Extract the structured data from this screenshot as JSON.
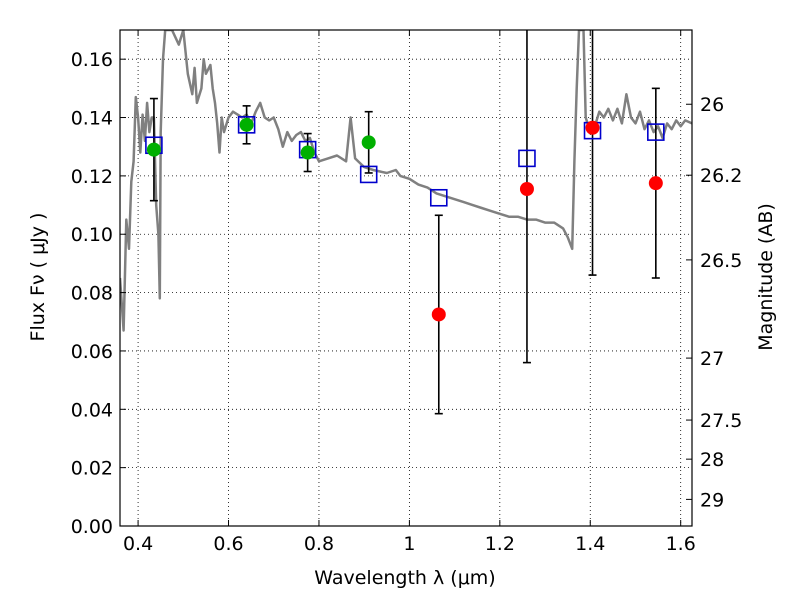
{
  "chart_data": {
    "type": "scatter",
    "xlabel": "Wavelength  λ (μm)",
    "ylabel": "Flux  Fν  ( μJy )",
    "y2label": "Magnitude (AB)",
    "xlim": [
      0.36,
      1.625
    ],
    "ylim": [
      0.0,
      0.17
    ],
    "grid": true,
    "x_ticks": [
      0.4,
      0.6,
      0.8,
      1.0,
      1.2,
      1.4,
      1.6
    ],
    "x_tick_labels": [
      "0.4",
      "0.6",
      "0.8",
      "1",
      "1.2",
      "1.4",
      "1.6"
    ],
    "y_ticks": [
      0.0,
      0.02,
      0.04,
      0.06,
      0.08,
      0.1,
      0.12,
      0.14,
      0.16
    ],
    "y_tick_labels": [
      "0.00",
      "0.02",
      "0.04",
      "0.06",
      "0.08",
      "0.10",
      "0.12",
      "0.14",
      "0.16"
    ],
    "y2_ticks": [
      26,
      26.2,
      26.5,
      27,
      27.5,
      28,
      29
    ],
    "y2_tick_labels": [
      "26",
      "26.2",
      "26.5",
      "27",
      "27.5",
      "28",
      "29"
    ],
    "series": [
      {
        "marker": "circle",
        "color": "#00b000",
        "points": [
          {
            "x": 0.435,
            "y": 0.129,
            "yerr": 0.0175
          },
          {
            "x": 0.64,
            "y": 0.1375,
            "yerr": 0.0065
          },
          {
            "x": 0.775,
            "y": 0.128,
            "yerr": 0.0065
          },
          {
            "x": 0.91,
            "y": 0.1315,
            "yerr": 0.0105
          }
        ]
      },
      {
        "marker": "circle",
        "color": "#ff0000",
        "points": [
          {
            "x": 1.065,
            "y": 0.0725,
            "yerr": 0.034
          },
          {
            "x": 1.26,
            "y": 0.1155,
            "yerr": 0.0595
          },
          {
            "x": 1.405,
            "y": 0.1365,
            "yerr": 0.0505
          },
          {
            "x": 1.545,
            "y": 0.1175,
            "yerr": 0.0325
          }
        ]
      },
      {
        "marker": "square-open",
        "color": "#0000cc",
        "points": [
          {
            "x": 0.435,
            "y": 0.1305
          },
          {
            "x": 0.64,
            "y": 0.1375
          },
          {
            "x": 0.775,
            "y": 0.129
          },
          {
            "x": 0.91,
            "y": 0.1205
          },
          {
            "x": 1.065,
            "y": 0.1125
          },
          {
            "x": 1.26,
            "y": 0.126
          },
          {
            "x": 1.405,
            "y": 0.1355
          },
          {
            "x": 1.545,
            "y": 0.135
          }
        ]
      },
      {
        "marker": "line",
        "color": "#808080",
        "points": [
          {
            "x": 0.36,
            "y": 0.085
          },
          {
            "x": 0.368,
            "y": 0.067
          },
          {
            "x": 0.374,
            "y": 0.105
          },
          {
            "x": 0.38,
            "y": 0.095
          },
          {
            "x": 0.385,
            "y": 0.118
          },
          {
            "x": 0.39,
            "y": 0.125
          },
          {
            "x": 0.395,
            "y": 0.147
          },
          {
            "x": 0.4,
            "y": 0.14
          },
          {
            "x": 0.405,
            "y": 0.128
          },
          {
            "x": 0.41,
            "y": 0.141
          },
          {
            "x": 0.415,
            "y": 0.132
          },
          {
            "x": 0.42,
            "y": 0.145
          },
          {
            "x": 0.425,
            "y": 0.135
          },
          {
            "x": 0.43,
            "y": 0.14
          },
          {
            "x": 0.435,
            "y": 0.14
          },
          {
            "x": 0.44,
            "y": 0.11
          },
          {
            "x": 0.445,
            "y": 0.1
          },
          {
            "x": 0.448,
            "y": 0.078
          },
          {
            "x": 0.45,
            "y": 0.135
          },
          {
            "x": 0.455,
            "y": 0.16
          },
          {
            "x": 0.46,
            "y": 0.17
          },
          {
            "x": 0.475,
            "y": 0.17
          },
          {
            "x": 0.49,
            "y": 0.165
          },
          {
            "x": 0.5,
            "y": 0.17
          },
          {
            "x": 0.51,
            "y": 0.155
          },
          {
            "x": 0.52,
            "y": 0.148
          },
          {
            "x": 0.525,
            "y": 0.157
          },
          {
            "x": 0.53,
            "y": 0.145
          },
          {
            "x": 0.54,
            "y": 0.15
          },
          {
            "x": 0.545,
            "y": 0.16
          },
          {
            "x": 0.55,
            "y": 0.155
          },
          {
            "x": 0.56,
            "y": 0.158
          },
          {
            "x": 0.565,
            "y": 0.15
          },
          {
            "x": 0.57,
            "y": 0.145
          },
          {
            "x": 0.575,
            "y": 0.138
          },
          {
            "x": 0.58,
            "y": 0.128
          },
          {
            "x": 0.585,
            "y": 0.14
          },
          {
            "x": 0.59,
            "y": 0.135
          },
          {
            "x": 0.6,
            "y": 0.14
          },
          {
            "x": 0.61,
            "y": 0.142
          },
          {
            "x": 0.62,
            "y": 0.141
          },
          {
            "x": 0.63,
            "y": 0.14
          },
          {
            "x": 0.64,
            "y": 0.141
          },
          {
            "x": 0.65,
            "y": 0.138
          },
          {
            "x": 0.66,
            "y": 0.142
          },
          {
            "x": 0.67,
            "y": 0.145
          },
          {
            "x": 0.68,
            "y": 0.14
          },
          {
            "x": 0.69,
            "y": 0.139
          },
          {
            "x": 0.7,
            "y": 0.14
          },
          {
            "x": 0.71,
            "y": 0.136
          },
          {
            "x": 0.72,
            "y": 0.13
          },
          {
            "x": 0.73,
            "y": 0.135
          },
          {
            "x": 0.74,
            "y": 0.132
          },
          {
            "x": 0.75,
            "y": 0.134
          },
          {
            "x": 0.76,
            "y": 0.135
          },
          {
            "x": 0.77,
            "y": 0.132
          },
          {
            "x": 0.78,
            "y": 0.133
          },
          {
            "x": 0.79,
            "y": 0.128
          },
          {
            "x": 0.8,
            "y": 0.125
          },
          {
            "x": 0.82,
            "y": 0.126
          },
          {
            "x": 0.84,
            "y": 0.127
          },
          {
            "x": 0.86,
            "y": 0.125
          },
          {
            "x": 0.87,
            "y": 0.14
          },
          {
            "x": 0.88,
            "y": 0.126
          },
          {
            "x": 0.9,
            "y": 0.123
          },
          {
            "x": 0.92,
            "y": 0.122
          },
          {
            "x": 0.95,
            "y": 0.121
          },
          {
            "x": 0.97,
            "y": 0.122
          },
          {
            "x": 0.98,
            "y": 0.12
          },
          {
            "x": 1.0,
            "y": 0.119
          },
          {
            "x": 1.02,
            "y": 0.117
          },
          {
            "x": 1.04,
            "y": 0.116
          },
          {
            "x": 1.06,
            "y": 0.114
          },
          {
            "x": 1.08,
            "y": 0.113
          },
          {
            "x": 1.1,
            "y": 0.112
          },
          {
            "x": 1.12,
            "y": 0.111
          },
          {
            "x": 1.14,
            "y": 0.11
          },
          {
            "x": 1.16,
            "y": 0.109
          },
          {
            "x": 1.18,
            "y": 0.108
          },
          {
            "x": 1.2,
            "y": 0.107
          },
          {
            "x": 1.22,
            "y": 0.106
          },
          {
            "x": 1.24,
            "y": 0.106
          },
          {
            "x": 1.26,
            "y": 0.105
          },
          {
            "x": 1.28,
            "y": 0.105
          },
          {
            "x": 1.3,
            "y": 0.104
          },
          {
            "x": 1.32,
            "y": 0.104
          },
          {
            "x": 1.34,
            "y": 0.102
          },
          {
            "x": 1.35,
            "y": 0.099
          },
          {
            "x": 1.36,
            "y": 0.095
          },
          {
            "x": 1.365,
            "y": 0.125
          },
          {
            "x": 1.37,
            "y": 0.15
          },
          {
            "x": 1.375,
            "y": 0.17
          },
          {
            "x": 1.385,
            "y": 0.17
          },
          {
            "x": 1.39,
            "y": 0.14
          },
          {
            "x": 1.4,
            "y": 0.135
          },
          {
            "x": 1.41,
            "y": 0.137
          },
          {
            "x": 1.42,
            "y": 0.142
          },
          {
            "x": 1.43,
            "y": 0.14
          },
          {
            "x": 1.44,
            "y": 0.143
          },
          {
            "x": 1.45,
            "y": 0.139
          },
          {
            "x": 1.46,
            "y": 0.143
          },
          {
            "x": 1.47,
            "y": 0.138
          },
          {
            "x": 1.48,
            "y": 0.148
          },
          {
            "x": 1.49,
            "y": 0.14
          },
          {
            "x": 1.5,
            "y": 0.138
          },
          {
            "x": 1.51,
            "y": 0.142
          },
          {
            "x": 1.52,
            "y": 0.136
          },
          {
            "x": 1.53,
            "y": 0.139
          },
          {
            "x": 1.54,
            "y": 0.135
          },
          {
            "x": 1.55,
            "y": 0.137
          },
          {
            "x": 1.56,
            "y": 0.133
          },
          {
            "x": 1.57,
            "y": 0.138
          },
          {
            "x": 1.58,
            "y": 0.136
          },
          {
            "x": 1.59,
            "y": 0.139
          },
          {
            "x": 1.6,
            "y": 0.137
          },
          {
            "x": 1.61,
            "y": 0.139
          },
          {
            "x": 1.625,
            "y": 0.138
          }
        ]
      }
    ]
  }
}
